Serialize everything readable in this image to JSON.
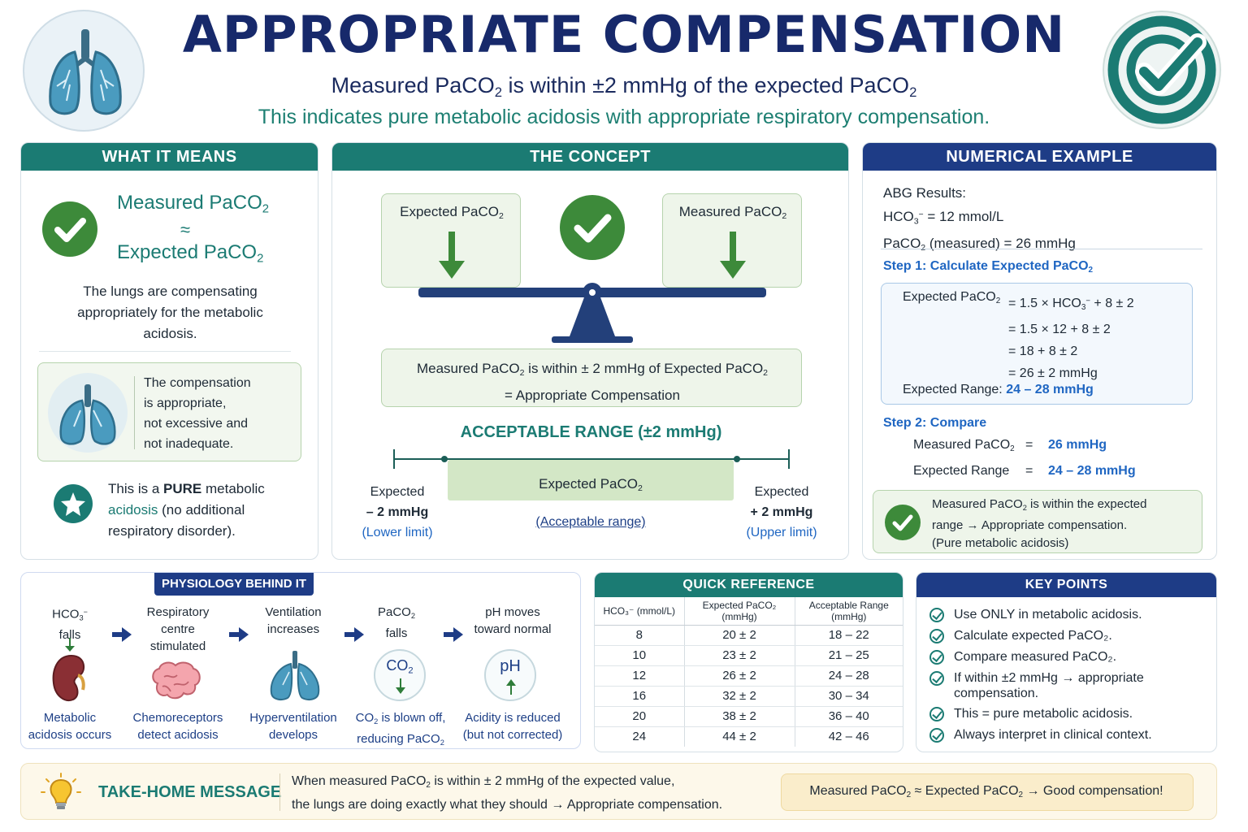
{
  "header": {
    "title": "APPROPRIATE COMPENSATION",
    "subtitle_a": "Measured PaCO",
    "subtitle_b": " is within ±2 mmHg of the expected PaCO",
    "subtitle2": "This indicates pure metabolic acidosis with appropriate respiratory compensation.",
    "sub2": "2"
  },
  "meaning": {
    "heading": "WHAT IT MEANS",
    "eq_top": "Measured PaCO",
    "eq_mid": "≈",
    "eq_bot": "Expected PaCO",
    "desc_1": "The lungs are compensating",
    "desc_2": "appropriately for the metabolic",
    "desc_3": "acidosis.",
    "box_1": "The compensation",
    "box_2": "is appropriate,",
    "box_3": "not excessive and",
    "box_4": "not inadequate.",
    "pure_1a": "This is a ",
    "pure_1b": "PURE",
    "pure_1c": " metabolic",
    "pure_2a": "acidosis",
    "pure_2b": " (no additional",
    "pure_3": "respiratory disorder)."
  },
  "concept": {
    "heading": "THE CONCEPT",
    "left_label": "Expected PaCO",
    "right_label": "Measured PaCO",
    "statement_1a": "Measured PaCO",
    "statement_1b": " is within ± 2 mmHg of Expected PaCO",
    "statement_2": "= Appropriate Compensation",
    "range_title": "ACCEPTABLE RANGE (±2 mmHg)",
    "range_center": "Expected PaCO",
    "range_center_note": "(Acceptable range)",
    "lower_1": "Expected",
    "lower_2": "– 2 mmHg",
    "lower_3": "(Lower limit)",
    "upper_1": "Expected",
    "upper_2": "+ 2 mmHg",
    "upper_3": "(Upper limit)"
  },
  "example": {
    "heading": "NUMERICAL EXAMPLE",
    "abg": "ABG Results:",
    "hco3_label": "HCO",
    "hco3_value": "=  12 mmol/L",
    "paco2_label": "PaCO",
    "paco2_rest": " (measured)  =  26 mmHg",
    "step1_a": "Step 1: Calculate Expected PaCO",
    "calc_label": "Expected PaCO",
    "calc_1a": "= 1.5 × HCO",
    "calc_1b": " + 8 ± 2",
    "calc_2": "= 1.5 × 12 + 8 ± 2",
    "calc_3": "= 18 + 8 ± 2",
    "calc_4": "= 26 ± 2 mmHg",
    "range_label": "Expected Range:",
    "range_value": "24 – 28 mmHg",
    "step2": "Step 2: Compare",
    "cmp_meas_label": "Measured PaCO",
    "cmp_eq": "=",
    "cmp_meas_val": "26 mmHg",
    "cmp_range_label": "Expected Range",
    "cmp_range_val": "24 – 28 mmHg",
    "result_1a": "Measured PaCO",
    "result_1b": " is within the expected",
    "result_2": "range → Appropriate compensation.",
    "result_3": "(Pure metabolic acidosis)"
  },
  "physiology": {
    "heading": "PHYSIOLOGY BEHIND IT",
    "s1_top_a": "HCO",
    "s1_top_b": "falls",
    "s1_bot_1": "Metabolic",
    "s1_bot_2": "acidosis occurs",
    "s2_top_1": "Respiratory",
    "s2_top_2": "centre",
    "s2_top_3": "stimulated",
    "s2_bot_1": "Chemoreceptors",
    "s2_bot_2": "detect acidosis",
    "s3_top_1": "Ventilation",
    "s3_top_2": "increases",
    "s3_bot_1": "Hyperventilation",
    "s3_bot_2": "develops",
    "s4_top_a": "PaCO",
    "s4_top_b": "falls",
    "s4_icon": "CO",
    "s4_bot_1a": "CO",
    "s4_bot_1b": " is blown off,",
    "s4_bot_2a": "reducing PaCO",
    "s5_top_1": "pH moves",
    "s5_top_2": "toward normal",
    "s5_icon": "pH",
    "s5_bot_1": "Acidity is reduced",
    "s5_bot_2": "(but not corrected)"
  },
  "quickref": {
    "heading": "QUICK REFERENCE",
    "col1": "HCO₃⁻ (mmol/L)",
    "col2": "Expected PaCO₂ (mmHg)",
    "col3": "Acceptable Range (mmHg)",
    "rows": [
      [
        "8",
        "20 ± 2",
        "18 – 22"
      ],
      [
        "10",
        "23 ± 2",
        "21 – 25"
      ],
      [
        "12",
        "26 ± 2",
        "24 – 28"
      ],
      [
        "16",
        "32 ± 2",
        "30 – 34"
      ],
      [
        "20",
        "38 ± 2",
        "36 – 40"
      ],
      [
        "24",
        "44 ± 2",
        "42 – 46"
      ]
    ]
  },
  "keypoints": {
    "heading": "KEY POINTS",
    "items": [
      "Use ONLY in metabolic acidosis.",
      "Calculate expected PaCO₂.",
      "Compare measured PaCO₂.",
      "If within ±2 mmHg → appropriate compensation.",
      "This = pure metabolic acidosis.",
      "Always interpret in clinical context."
    ]
  },
  "takehome": {
    "heading": "TAKE-HOME MESSAGE",
    "line1a": "When measured PaCO",
    "line1b": " is within ± 2 mmHg of the expected value,",
    "line2": "the lungs are doing exactly what they should → Appropriate compensation.",
    "pill_a": "Measured PaCO",
    "pill_b": " ≈ Expected PaCO",
    "pill_c": "  → Good compensation!"
  },
  "colors": {
    "navy": "#17296b",
    "teal": "#1b7b73",
    "green": "#3d8a3a",
    "blue": "#1f66c2"
  }
}
